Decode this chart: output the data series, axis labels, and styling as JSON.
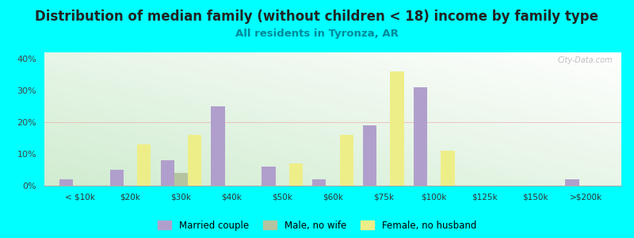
{
  "title": "Distribution of median family (without children < 18) income by family type",
  "subtitle": "All residents in Tyronza, AR",
  "categories": [
    "< $10k",
    "$20k",
    "$30k",
    "$40k",
    "$50k",
    "$60k",
    "$75k",
    "$100k",
    "$125k",
    "$150k",
    ">$200k"
  ],
  "married_couple": [
    2,
    5,
    8,
    25,
    6,
    2,
    19,
    31,
    0,
    0,
    2
  ],
  "male_no_wife": [
    0,
    0,
    4,
    0,
    0,
    0,
    0,
    0,
    0,
    0,
    0
  ],
  "female_no_husband": [
    0,
    13,
    16,
    0,
    7,
    16,
    36,
    11,
    0,
    0,
    0
  ],
  "married_color": "#b09fcc",
  "male_color": "#b5c4a0",
  "female_color": "#eeee88",
  "background_outer": "#00ffff",
  "ylim": [
    0,
    42
  ],
  "yticks": [
    0,
    10,
    20,
    30,
    40
  ],
  "ytick_labels": [
    "0%",
    "10%",
    "20%",
    "30%",
    "40%"
  ],
  "bar_width": 0.27,
  "title_fontsize": 12,
  "subtitle_fontsize": 9.5,
  "watermark": "City-Data.com"
}
